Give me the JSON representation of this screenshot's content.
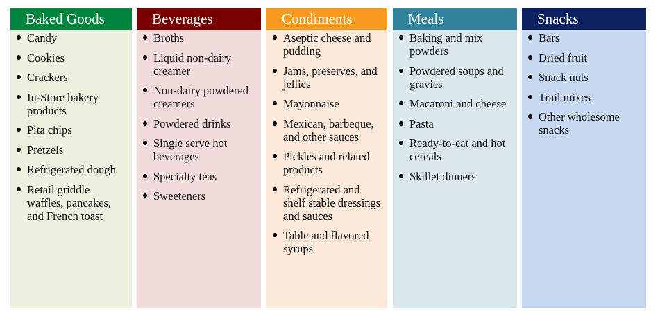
{
  "columns": [
    {
      "title": "Baked Goods",
      "header_color": "#00853F",
      "body_color": "#EBF1DE",
      "items": [
        "Candy",
        "Cookies",
        "Crackers",
        "In-Store bakery products",
        "Pita chips",
        "Pretzels",
        "Refrigerated dough",
        "Retail griddle waffles, pancakes, and French toast"
      ]
    },
    {
      "title": "Beverages",
      "header_color": "#7A0000",
      "body_color": "#F2DCDB",
      "items": [
        "Broths",
        "Liquid non-dairy creamer",
        "Non-dairy powdered creamers",
        "Powdered drinks",
        "Single serve hot beverages",
        "Specialty teas",
        "Sweeteners"
      ]
    },
    {
      "title": "Condiments",
      "header_color": "#F79A1E",
      "body_color": "#FDE9D9",
      "items": [
        "Aseptic cheese and pudding",
        "Jams, preserves, and jellies",
        "Mayonnaise",
        "Mexican, barbeque, and other sauces",
        "Pickles and related products",
        "Refrigerated and shelf stable dressings and sauces",
        "Table and flavored syrups"
      ]
    },
    {
      "title": "Meals",
      "header_color": "#31849B",
      "body_color": "#DAE8EE",
      "items": [
        "Baking and mix powders",
        "Powdered soups and gravies",
        "Macaroni and cheese",
        "Pasta",
        "Ready-to-eat and hot cereals",
        "Skillet dinners"
      ]
    },
    {
      "title": "Snacks",
      "header_color": "#0D2160",
      "body_color": "#C6D9F1",
      "items": [
        "Bars",
        "Dried fruit",
        "Snack nuts",
        "Trail mixes",
        "Other wholesome snacks"
      ]
    }
  ]
}
